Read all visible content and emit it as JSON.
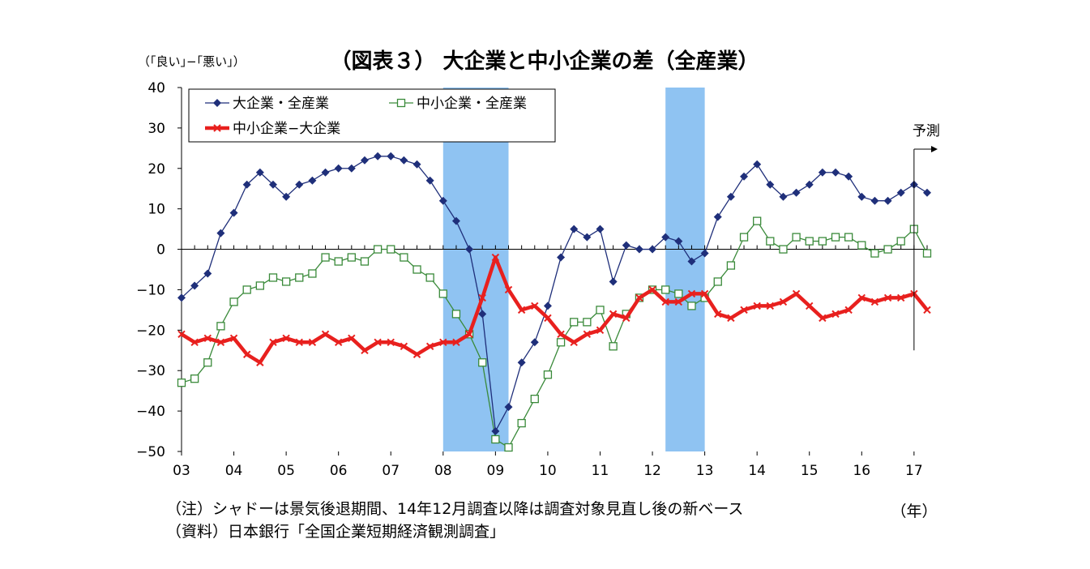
{
  "chart_data": {
    "type": "line",
    "title": "（図表３） 大企業と中小企業の差（全産業）",
    "ylabel": "（｢良い｣−｢悪い｣）",
    "xlabel": "（年）",
    "ylim": [
      -50,
      40
    ],
    "yticks": [
      "40",
      "30",
      "20",
      "10",
      "0",
      "−10",
      "−20",
      "−30",
      "−40",
      "−50"
    ],
    "ytick_values": [
      40,
      30,
      20,
      10,
      0,
      -10,
      -20,
      -30,
      -40,
      -50
    ],
    "xlim": [
      2003.0,
      2017.25
    ],
    "xticks": [
      "03",
      "04",
      "05",
      "06",
      "07",
      "08",
      "09",
      "10",
      "11",
      "12",
      "13",
      "14",
      "15",
      "16",
      "17"
    ],
    "xtick_values": [
      2003,
      2004,
      2005,
      2006,
      2007,
      2008,
      2009,
      2010,
      2011,
      2012,
      2013,
      2014,
      2015,
      2016,
      2017
    ],
    "x_start": 2003.0,
    "x_step": 0.25,
    "grid": false,
    "legend": "top-left",
    "shaded_periods": [
      [
        2008.0,
        2009.25
      ],
      [
        2012.25,
        2013.0
      ]
    ],
    "forecast_label": "予測",
    "forecast_x": 2017.0,
    "series": [
      {
        "name": "大企業・全産業",
        "color": "#1f2f7a",
        "marker": "diamond",
        "values": [
          -12,
          -9,
          -6,
          4,
          9,
          16,
          19,
          16,
          13,
          16,
          17,
          19,
          20,
          20,
          22,
          23,
          23,
          22,
          21,
          17,
          12,
          7,
          0,
          -16,
          -45,
          -39,
          -28,
          -23,
          -14,
          -2,
          5,
          3,
          5,
          -8,
          1,
          0,
          0,
          3,
          2,
          -3,
          -1,
          8,
          13,
          18,
          21,
          16,
          13,
          14,
          16,
          19,
          19,
          18,
          13,
          12,
          12,
          14,
          16,
          14
        ]
      },
      {
        "name": "中小企業・全産業",
        "color": "#3a8a3a",
        "marker": "square",
        "values": [
          -33,
          -32,
          -28,
          -19,
          -13,
          -10,
          -9,
          -7,
          -8,
          -7,
          -6,
          -2,
          -3,
          -2,
          -3,
          0,
          0,
          -2,
          -5,
          -7,
          -11,
          -16,
          -21,
          -28,
          -47,
          -49,
          -43,
          -37,
          -31,
          -23,
          -18,
          -18,
          -15,
          -24,
          -16,
          -12,
          -10,
          -10,
          -11,
          -14,
          -12,
          -8,
          -4,
          3,
          7,
          2,
          0,
          3,
          2,
          2,
          3,
          3,
          1,
          -1,
          0,
          2,
          5,
          -1
        ]
      },
      {
        "name": "中小企業−大企業",
        "color": "#e8201e",
        "marker": "x",
        "values": [
          -21,
          -23,
          -22,
          -23,
          -22,
          -26,
          -28,
          -23,
          -22,
          -23,
          -23,
          -21,
          -23,
          -22,
          -25,
          -23,
          -23,
          -24,
          -26,
          -24,
          -23,
          -23,
          -21,
          -12,
          -2,
          -10,
          -15,
          -14,
          -17,
          -21,
          -23,
          -21,
          -20,
          -16,
          -17,
          -12,
          -10,
          -13,
          -13,
          -11,
          -11,
          -16,
          -17,
          -15,
          -14,
          -14,
          -13,
          -11,
          -14,
          -17,
          -16,
          -15,
          -12,
          -13,
          -12,
          -12,
          -11,
          -15
        ]
      }
    ]
  },
  "notes": {
    "note1": "（注）シャドーは景気後退期間、14年12月調査以降は調査対象見直し後の新ベース",
    "note2": "（資料）日本銀行「全国企業短期経済観測調査」"
  }
}
